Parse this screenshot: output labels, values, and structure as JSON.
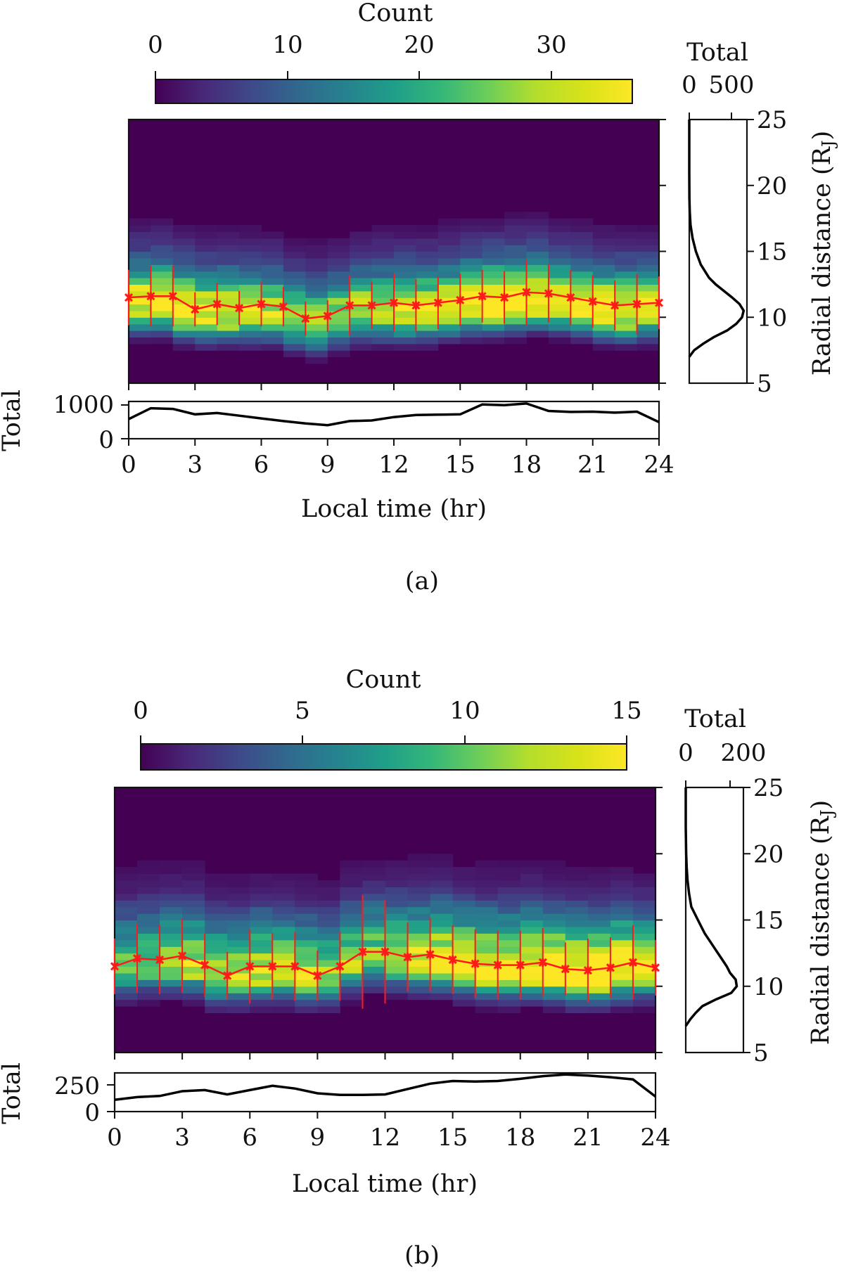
{
  "figure": {
    "panels": [
      "(a)",
      "(b)"
    ]
  },
  "colors": {
    "mean_marker": "#ff1a1a",
    "profile_line": "#000000",
    "colormap": "viridis",
    "background_bin": "#440154"
  },
  "chart_data": [
    {
      "panel_label": "(a)",
      "type": "heatmap",
      "colorbar": {
        "title": "Count",
        "ticks": [
          "0",
          "10",
          "20",
          "30"
        ],
        "range": [
          0,
          36
        ]
      },
      "xlabel": "Local time (hr)",
      "xlim": [
        0,
        24
      ],
      "xticks": [
        "0",
        "3",
        "6",
        "9",
        "12",
        "15",
        "18",
        "21",
        "24"
      ],
      "ylabel": "Radial distance (R",
      "ylabel_sub": "J",
      "ylabel_close": ")",
      "ylim": [
        5,
        25
      ],
      "yticks": [
        "5",
        "10",
        "15",
        "20",
        "25"
      ],
      "mean_radius": {
        "local_time": [
          0,
          1,
          2,
          3,
          4,
          5,
          6,
          7,
          8,
          9,
          10,
          11,
          12,
          13,
          14,
          15,
          16,
          17,
          18,
          19,
          20,
          21,
          22,
          23,
          24
        ],
        "mean": [
          11.5,
          11.6,
          11.6,
          10.6,
          11.0,
          10.7,
          11.0,
          10.8,
          9.9,
          10.1,
          10.9,
          10.9,
          11.1,
          10.9,
          11.1,
          11.3,
          11.6,
          11.5,
          11.9,
          11.8,
          11.5,
          11.2,
          10.9,
          11.0,
          11.1
        ],
        "spread": [
          2.1,
          2.3,
          2.3,
          1.3,
          1.6,
          1.3,
          1.7,
          1.5,
          1.3,
          1.2,
          2.3,
          1.8,
          2.2,
          2.0,
          2.0,
          2.0,
          2.0,
          2.0,
          2.5,
          2.2,
          2.1,
          2.0,
          1.9,
          2.3,
          2.0
        ]
      },
      "side_profile": {
        "title": "Total",
        "ticks": [
          "0",
          "500"
        ],
        "xlim": [
          0,
          700
        ],
        "radius": [
          7.0,
          7.5,
          8.0,
          8.5,
          9.0,
          9.5,
          10.0,
          10.5,
          11.0,
          11.5,
          12.0,
          12.5,
          13.0,
          14.0,
          15.0,
          16.0,
          17.0,
          18.0,
          19.0,
          20.0,
          21.0,
          23.0,
          25.0
        ],
        "total": [
          0,
          60,
          170,
          300,
          460,
          570,
          640,
          660,
          610,
          520,
          420,
          320,
          240,
          140,
          80,
          40,
          15,
          6,
          2,
          1,
          0,
          0,
          0
        ]
      },
      "bottom_total": {
        "ylabel": "Total",
        "yticks": [
          "0",
          "1000"
        ],
        "ylim": [
          0,
          1100
        ],
        "local_time": [
          0,
          1,
          2,
          3,
          4,
          5,
          6,
          7,
          8,
          9,
          10,
          11,
          12,
          13,
          14,
          15,
          16,
          17,
          18,
          19,
          20,
          21,
          22,
          23,
          24
        ],
        "total": [
          580,
          900,
          880,
          720,
          760,
          680,
          600,
          520,
          450,
          400,
          520,
          540,
          640,
          700,
          710,
          720,
          1010,
          990,
          1040,
          820,
          790,
          800,
          770,
          800,
          490
        ]
      }
    },
    {
      "panel_label": "(b)",
      "type": "heatmap",
      "colorbar": {
        "title": "Count",
        "ticks": [
          "0",
          "5",
          "10",
          "15"
        ],
        "range": [
          0,
          15
        ]
      },
      "xlabel": "Local time (hr)",
      "xlim": [
        0,
        24
      ],
      "xticks": [
        "0",
        "3",
        "6",
        "9",
        "12",
        "15",
        "18",
        "21",
        "24"
      ],
      "ylabel": "Radial distance (R",
      "ylabel_sub": "J",
      "ylabel_close": ")",
      "ylim": [
        5,
        25
      ],
      "yticks": [
        "5",
        "10",
        "15",
        "20",
        "25"
      ],
      "mean_radius": {
        "local_time": [
          0,
          1,
          2,
          3,
          4,
          5,
          6,
          7,
          8,
          9,
          10,
          11,
          12,
          13,
          14,
          15,
          16,
          17,
          18,
          19,
          20,
          21,
          22,
          23,
          24
        ],
        "mean": [
          11.5,
          12.1,
          12.0,
          12.3,
          11.6,
          10.8,
          11.5,
          11.5,
          11.5,
          10.8,
          11.5,
          12.6,
          12.6,
          12.2,
          12.4,
          12.0,
          11.7,
          11.6,
          11.6,
          11.8,
          11.3,
          11.2,
          11.4,
          11.8,
          11.4
        ],
        "spread": [
          2.1,
          2.6,
          2.6,
          2.8,
          2.4,
          1.8,
          2.8,
          2.5,
          2.6,
          1.9,
          2.6,
          4.3,
          3.9,
          2.6,
          2.8,
          2.6,
          2.6,
          2.6,
          2.6,
          2.6,
          2.0,
          2.4,
          2.3,
          2.8,
          2.1
        ]
      },
      "side_profile": {
        "title": "Total",
        "ticks": [
          "0",
          "200"
        ],
        "xlim": [
          0,
          260
        ],
        "radius": [
          7.0,
          7.5,
          8.0,
          8.5,
          9.0,
          9.5,
          10.0,
          10.5,
          11.0,
          11.5,
          12.0,
          12.5,
          13.0,
          14.0,
          15.0,
          16.0,
          17.0,
          18.0,
          19.0,
          20.0,
          22.0,
          25.0
        ],
        "total": [
          0,
          20,
          45,
          75,
          135,
          205,
          230,
          225,
          200,
          185,
          165,
          145,
          125,
          85,
          55,
          25,
          15,
          8,
          4,
          2,
          0,
          0
        ]
      },
      "bottom_total": {
        "ylabel": "Total",
        "yticks": [
          "0",
          "250"
        ],
        "ylim": [
          0,
          360
        ],
        "local_time": [
          0,
          1,
          2,
          3,
          4,
          5,
          6,
          7,
          8,
          9,
          10,
          11,
          12,
          13,
          14,
          15,
          16,
          17,
          18,
          19,
          20,
          21,
          22,
          23,
          24
        ],
        "total": [
          110,
          135,
          145,
          190,
          200,
          160,
          200,
          240,
          215,
          170,
          155,
          155,
          160,
          210,
          260,
          285,
          280,
          285,
          305,
          330,
          345,
          335,
          320,
          300,
          140
        ]
      }
    }
  ]
}
